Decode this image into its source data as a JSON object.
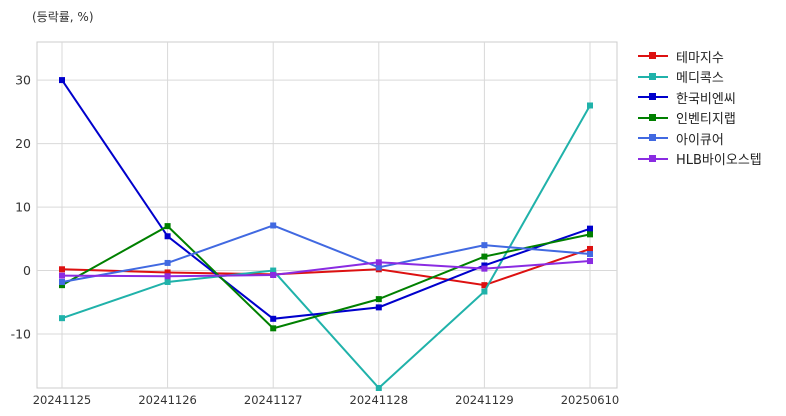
{
  "unit_label": "(등락률, %)",
  "chart_data": {
    "type": "line",
    "categories": [
      "20241125",
      "20241126",
      "20241127",
      "20241128",
      "20241129",
      "20250610"
    ],
    "yticks": [
      -10,
      0,
      10,
      20,
      30
    ],
    "ylim": [
      -18.5,
      36
    ],
    "grid": true,
    "legend_position": "right",
    "series": [
      {
        "name": "테마지수",
        "color": "#dd1111",
        "values": [
          0.2,
          -0.3,
          -0.6,
          0.2,
          -2.3,
          3.4
        ]
      },
      {
        "name": "메디콕스",
        "color": "#20b2aa",
        "values": [
          -7.5,
          -1.8,
          0.0,
          -18.5,
          -3.3,
          26.0
        ]
      },
      {
        "name": "한국비엔씨",
        "color": "#0000cc",
        "values": [
          30.0,
          5.4,
          -7.6,
          -5.8,
          0.8,
          6.6
        ]
      },
      {
        "name": "인벤티지랩",
        "color": "#008000",
        "values": [
          -2.3,
          7.0,
          -9.1,
          -4.5,
          2.2,
          5.7
        ]
      },
      {
        "name": "아이큐어",
        "color": "#4169e1",
        "values": [
          -1.8,
          1.2,
          7.1,
          0.5,
          4.0,
          2.6
        ]
      },
      {
        "name": "HLB바이오스텝",
        "color": "#8a2be2",
        "values": [
          -0.8,
          -0.9,
          -0.7,
          1.3,
          0.3,
          1.5
        ]
      }
    ]
  }
}
